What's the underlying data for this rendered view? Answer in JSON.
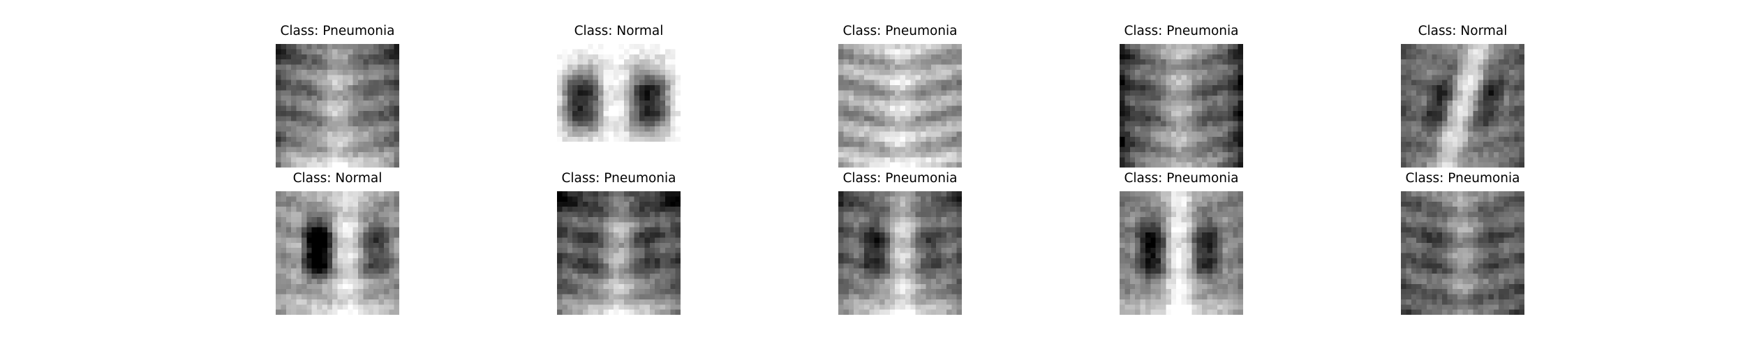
{
  "figure": {
    "panels": [
      {
        "title": "Class: Pneumonia",
        "pattern": "diffuse-chest"
      },
      {
        "title": "Class: Normal",
        "pattern": "clear-lungs"
      },
      {
        "title": "Class: Pneumonia",
        "pattern": "bright-opaque"
      },
      {
        "title": "Class: Pneumonia",
        "pattern": "cloudy-dark-sides"
      },
      {
        "title": "Class: Normal",
        "pattern": "diagonal-spine"
      },
      {
        "title": "Class: Normal",
        "pattern": "left-dark-lung"
      },
      {
        "title": "Class: Pneumonia",
        "pattern": "dark-upper"
      },
      {
        "title": "Class: Pneumonia",
        "pattern": "dark-left-upper"
      },
      {
        "title": "Class: Pneumonia",
        "pattern": "dark-lungs-bright-center"
      },
      {
        "title": "Class: Pneumonia",
        "pattern": "hazy-gray"
      }
    ]
  }
}
